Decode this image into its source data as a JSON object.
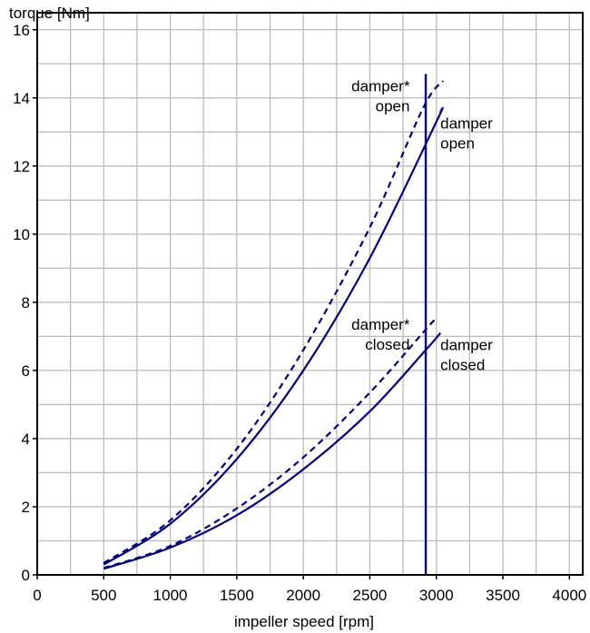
{
  "chart_data": {
    "type": "line",
    "xlabel": "impeller speed [rpm]",
    "ylabel": "torque [Nm]",
    "xlim": [
      0,
      4100
    ],
    "ylim": [
      0,
      16.5
    ],
    "xticks": [
      0,
      500,
      1000,
      1500,
      2000,
      2500,
      3000,
      3500,
      4000
    ],
    "yticks": [
      0,
      2,
      4,
      6,
      8,
      10,
      12,
      14,
      16
    ],
    "grid": true,
    "colors": {
      "line": "#000080",
      "grid": "#bbbbbb",
      "frame": "#000000"
    },
    "series": [
      {
        "name": "damper open",
        "style": "solid",
        "x": [
          500,
          1000,
          1500,
          2000,
          2500,
          3000,
          3030
        ],
        "y": [
          0.3,
          1.5,
          3.4,
          6.0,
          9.3,
          13.3,
          13.6
        ]
      },
      {
        "name": "damper* open",
        "style": "dashed",
        "x": [
          500,
          1000,
          1500,
          2000,
          2500,
          2900,
          3050
        ],
        "y": [
          0.35,
          1.6,
          3.7,
          6.6,
          10.2,
          13.7,
          14.5
        ]
      },
      {
        "name": "damper closed",
        "style": "solid",
        "x": [
          500,
          1000,
          1500,
          2000,
          2500,
          2920,
          3030
        ],
        "y": [
          0.18,
          0.8,
          1.75,
          3.1,
          4.8,
          6.6,
          7.1
        ]
      },
      {
        "name": "damper* closed",
        "style": "dashed",
        "x": [
          500,
          1000,
          1500,
          2000,
          2500,
          2920,
          2990
        ],
        "y": [
          0.2,
          0.85,
          1.95,
          3.45,
          5.35,
          7.2,
          7.5
        ]
      }
    ],
    "vline": {
      "x": 2920,
      "y_top": 14.7
    },
    "annotations": [
      {
        "lines": [
          "damper*",
          "open"
        ],
        "x": 2800,
        "y": 14.2,
        "anchor": "end"
      },
      {
        "lines": [
          "damper",
          "open"
        ],
        "x": 3030,
        "y": 13.1,
        "anchor": "start"
      },
      {
        "lines": [
          "damper*",
          "closed"
        ],
        "x": 2800,
        "y": 7.2,
        "anchor": "end"
      },
      {
        "lines": [
          "damper",
          "closed"
        ],
        "x": 3030,
        "y": 6.6,
        "anchor": "start"
      }
    ]
  }
}
